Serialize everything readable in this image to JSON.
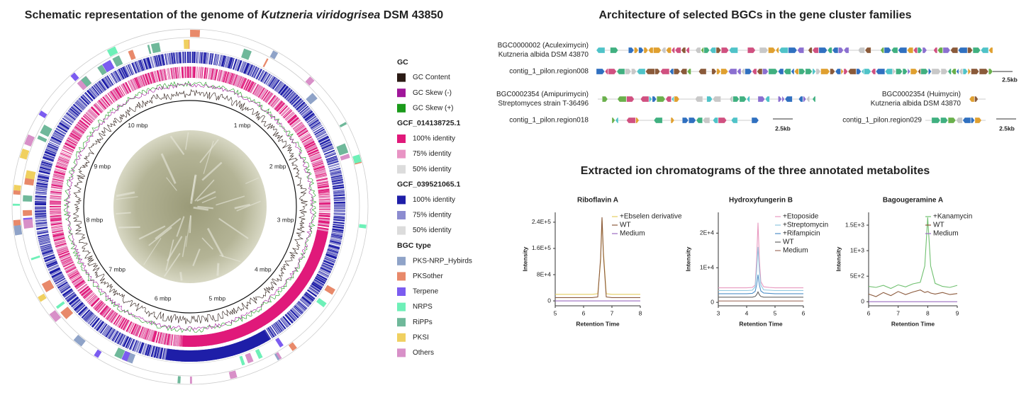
{
  "left": {
    "title": {
      "pre": "Schematic representation of the genome of ",
      "italic": "Kutzneria viridogrisea",
      "post": " DSM 43850"
    },
    "genome_ticks": [
      "1 mbp",
      "2 mbp",
      "3 mbp",
      "4 mbp",
      "5 mbp",
      "6 mbp",
      "7 mbp",
      "8 mbp",
      "9 mbp",
      "10 mbp"
    ],
    "legend": [
      {
        "title": "GC",
        "items": [
          {
            "name": "GC  Content",
            "color": "#2a1a14"
          },
          {
            "name": "GC  Skew (-)",
            "color": "#a0179a"
          },
          {
            "name": "GC  Skew (+)",
            "color": "#1a9a1a"
          }
        ]
      },
      {
        "title": "GCF_014138725.1",
        "items": [
          {
            "name": "100% identity",
            "color": "#e0197a"
          },
          {
            "name": "75% identity",
            "color": "#e894c4"
          },
          {
            "name": "50% identity",
            "color": "#dcdcdc"
          }
        ]
      },
      {
        "title": "GCF_039521065.1",
        "items": [
          {
            "name": "100% identity",
            "color": "#1e1ea8"
          },
          {
            "name": "75% identity",
            "color": "#8c8cd0"
          },
          {
            "name": "50% identity",
            "color": "#dcdcdc"
          }
        ]
      },
      {
        "title": "BGC type",
        "items": [
          {
            "name": "PKS-NRP_Hybirds",
            "color": "#8fa3c8"
          },
          {
            "name": "PKSother",
            "color": "#e8896a"
          },
          {
            "name": "Terpene",
            "color": "#7b5cf0"
          },
          {
            "name": "NRPS",
            "color": "#6ef0b8"
          },
          {
            "name": "RiPPs",
            "color": "#6fb89a"
          },
          {
            "name": "PKSI",
            "color": "#f0d060"
          },
          {
            "name": "Others",
            "color": "#d890c8"
          }
        ]
      }
    ]
  },
  "right": {
    "title": "Architecture of selected BGCs in the gene cluster families",
    "bgcs": [
      {
        "lines": [
          "BGC0000002 (Aculeximycin)",
          "Kutzneria albida DSM 43870"
        ]
      },
      {
        "lines": [
          "contig_1_pilon.region008"
        ]
      },
      {
        "lines": [
          "BGC0002354 (Amipurimycin)",
          "Streptomyces strain T-36496"
        ]
      },
      {
        "lines": [
          "contig_1_pilon.region018"
        ]
      },
      {
        "lines": [
          "BGC0002354 (Huimycin)",
          "Kutzneria albida DSM 43870"
        ]
      },
      {
        "lines": [
          "contig_1_pilon.region029"
        ]
      }
    ],
    "scale_bars": [
      "2.5kb",
      "2.5kb",
      "2.5kb"
    ],
    "chrom_title": "Extracted ion chromatograms of the three annotated metabolites"
  },
  "chart_data": [
    {
      "type": "line",
      "title": "Riboflavin A",
      "xlabel": "Retention Time",
      "ylabel": "Intensity",
      "x": [
        5,
        5.5,
        6,
        6.3,
        6.5,
        6.6,
        6.65,
        6.7,
        6.8,
        7,
        7.5,
        8
      ],
      "series": [
        {
          "name": "+Ebselen derivative",
          "color": "#e6cf62",
          "values": [
            20000,
            20000,
            20000,
            20000,
            22000,
            120000,
            250000,
            150000,
            22000,
            20000,
            20000,
            20000
          ]
        },
        {
          "name": "WT",
          "color": "#8b5a3c",
          "values": [
            10000,
            10000,
            10000,
            10000,
            12000,
            130000,
            255000,
            140000,
            12000,
            10000,
            10000,
            10000
          ]
        },
        {
          "name": "Medium",
          "color": "#9b6bc0",
          "values": [
            0,
            0,
            0,
            0,
            0,
            0,
            0,
            0,
            0,
            0,
            0,
            0
          ]
        }
      ],
      "xlim": [
        5,
        8
      ],
      "xticks": [
        5,
        6,
        7,
        8
      ],
      "ylim": [
        -15000,
        270000
      ],
      "yticks": [
        0,
        {
          "value": 80000,
          "label": "8E+4"
        },
        {
          "value": 160000,
          "label": "1.6E+5"
        },
        {
          "value": 240000,
          "label": "2.4E+5"
        }
      ]
    },
    {
      "type": "line",
      "title": "Hydroxyfungerin B",
      "xlabel": "Retention Time",
      "ylabel": "Intensity",
      "x": [
        3,
        3.5,
        4,
        4.2,
        4.3,
        4.35,
        4.4,
        4.45,
        4.5,
        4.6,
        4.8,
        5,
        5.5,
        6
      ],
      "series": [
        {
          "name": "+Etoposide",
          "color": "#e89ac0",
          "values": [
            4200,
            4200,
            4200,
            4300,
            5000,
            12000,
            23000,
            12000,
            6000,
            4500,
            4300,
            4200,
            4200,
            4200
          ]
        },
        {
          "name": "+Streptomycin",
          "color": "#90c8e0",
          "values": [
            3400,
            3400,
            3400,
            3500,
            4500,
            9000,
            16000,
            9000,
            5000,
            3600,
            3500,
            3400,
            3400,
            3400
          ]
        },
        {
          "name": "+Rifampicin",
          "color": "#5090c8",
          "values": [
            2500,
            2500,
            2500,
            2600,
            3200,
            5000,
            8000,
            5000,
            3300,
            2700,
            2600,
            2500,
            2500,
            2500
          ]
        },
        {
          "name": "WT",
          "color": "#666666",
          "values": [
            1500,
            1500,
            1500,
            1500,
            1700,
            2200,
            3000,
            2200,
            1700,
            1500,
            1500,
            1500,
            1500,
            1500
          ]
        },
        {
          "name": "Medium",
          "color": "#a07060",
          "values": [
            400,
            400,
            400,
            400,
            400,
            400,
            400,
            400,
            400,
            400,
            400,
            400,
            400,
            400
          ]
        }
      ],
      "xlim": [
        3,
        6
      ],
      "xticks": [
        3,
        4,
        5,
        6
      ],
      "ylim": [
        -1000,
        26000
      ],
      "yticks": [
        0,
        {
          "value": 10000,
          "label": "1E+4"
        },
        {
          "value": 20000,
          "label": "2E+4"
        }
      ]
    },
    {
      "type": "line",
      "title": "Bagougeramine A",
      "xlabel": "Retention Time",
      "ylabel": "Intensity",
      "x": [
        6,
        6.25,
        6.5,
        6.75,
        7,
        7.25,
        7.5,
        7.75,
        7.9,
        8,
        8.1,
        8.25,
        8.5,
        8.75,
        9
      ],
      "series": [
        {
          "name": "+Kanamycin",
          "color": "#70c070",
          "values": [
            300,
            280,
            320,
            260,
            330,
            290,
            350,
            380,
            700,
            1650,
            700,
            360,
            300,
            280,
            320
          ]
        },
        {
          "name": "WT",
          "color": "#8b5a3c",
          "values": [
            150,
            100,
            180,
            120,
            200,
            140,
            190,
            230,
            180,
            200,
            170,
            150,
            180,
            140,
            160
          ]
        },
        {
          "name": "Medium",
          "color": "#9b6bc0",
          "values": [
            0,
            0,
            0,
            0,
            0,
            0,
            0,
            0,
            0,
            0,
            0,
            0,
            0,
            0,
            0
          ]
        }
      ],
      "xlim": [
        6,
        9
      ],
      "xticks": [
        6,
        7,
        8,
        9
      ],
      "ylim": [
        -80,
        1750
      ],
      "yticks": [
        0,
        {
          "value": 500,
          "label": "5E+2"
        },
        {
          "value": 1000,
          "label": "1E+3"
        },
        {
          "value": 1500,
          "label": "1.5E+3"
        }
      ]
    }
  ]
}
